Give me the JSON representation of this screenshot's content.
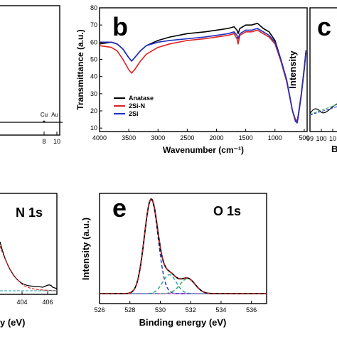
{
  "chart_data": [
    {
      "panel": "a",
      "type": "line",
      "x_ticks": [
        "8",
        "10"
      ],
      "peak_labels": [
        {
          "text": "Cu",
          "x": 8.0
        },
        {
          "text": "Au",
          "x": 9.7
        }
      ],
      "xlim": [
        0,
        10
      ]
    },
    {
      "panel": "b",
      "type": "line",
      "xlabel": "Wavenumber (cm⁻¹)",
      "ylabel": "Transmittance (a.u.)",
      "xlim": [
        4000,
        450
      ],
      "ylim": [
        8,
        80
      ],
      "x_ticks": [
        "4000",
        "3500",
        "3000",
        "2500",
        "2000",
        "1500",
        "1000",
        "500"
      ],
      "y_ticks": [
        "10",
        "20",
        "30",
        "40",
        "50",
        "60",
        "70",
        "80"
      ],
      "series": [
        {
          "name": "Anatase",
          "color": "#000000",
          "x": [
            4000,
            3800,
            3700,
            3600,
            3500,
            3450,
            3400,
            3300,
            3200,
            3000,
            2800,
            2500,
            2200,
            2000,
            1800,
            1700,
            1650,
            1630,
            1600,
            1500,
            1400,
            1300,
            1200,
            1100,
            1000,
            900,
            800,
            700,
            650,
            620,
            600,
            550,
            500,
            470,
            450
          ],
          "y": [
            59,
            60,
            59,
            56,
            51,
            49,
            51,
            55,
            58,
            61,
            63,
            65,
            66,
            67,
            68,
            69,
            67,
            65,
            68,
            70,
            70,
            71,
            68,
            66,
            61,
            50,
            38,
            20,
            15,
            14,
            18,
            30,
            45,
            55,
            55
          ]
        },
        {
          "name": "2Si-N",
          "color": "#e02020",
          "x": [
            4000,
            3800,
            3700,
            3600,
            3500,
            3450,
            3400,
            3300,
            3200,
            3000,
            2800,
            2500,
            2200,
            2000,
            1800,
            1700,
            1650,
            1630,
            1600,
            1500,
            1400,
            1300,
            1200,
            1100,
            1000,
            900,
            800,
            700,
            650,
            620,
            600,
            550,
            500,
            470,
            450
          ],
          "y": [
            58,
            57,
            55,
            50,
            44,
            42,
            44,
            49,
            53,
            57,
            59,
            61,
            62,
            63,
            64,
            65,
            62,
            59,
            64,
            66,
            66,
            67,
            65,
            63,
            59,
            49,
            37,
            20,
            15,
            14,
            18,
            30,
            44,
            54,
            55
          ]
        },
        {
          "name": "2Si",
          "color": "#2030c0",
          "x": [
            4000,
            3800,
            3700,
            3600,
            3500,
            3450,
            3400,
            3300,
            3200,
            3000,
            2800,
            2500,
            2200,
            2000,
            1800,
            1700,
            1650,
            1630,
            1600,
            1500,
            1400,
            1300,
            1200,
            1100,
            1000,
            900,
            800,
            700,
            650,
            620,
            600,
            550,
            500,
            470,
            450
          ],
          "y": [
            60,
            60,
            59,
            56,
            51,
            49,
            51,
            55,
            58,
            60,
            61,
            62,
            63,
            64,
            65,
            66,
            64,
            62,
            65,
            67,
            67,
            68,
            66,
            64,
            60,
            50,
            38,
            20,
            14,
            13,
            17,
            29,
            44,
            55,
            55
          ]
        }
      ],
      "legend_position": "bottom-left"
    },
    {
      "panel": "c",
      "type": "line",
      "ylabel": "Intensity",
      "x_ticks": [
        "99",
        "100",
        "10"
      ],
      "xlabel_fragment": "B"
    },
    {
      "panel": "d",
      "type": "line",
      "title": "N 1s",
      "x_ticks": [
        "404",
        "406"
      ],
      "xlabel_fragment": "y (eV)"
    },
    {
      "panel": "e",
      "type": "line",
      "title": "O 1s",
      "xlabel": "Binding energy (eV)",
      "ylabel": "Intensity (a.u.)",
      "xlim": [
        526,
        537
      ],
      "ylim": [
        0,
        1.08
      ],
      "x_ticks": [
        "526",
        "528",
        "530",
        "532",
        "534",
        "536"
      ],
      "fit_components": [
        {
          "center": 529.4,
          "height": 1.0,
          "width": 0.45,
          "color": "#2030c0"
        },
        {
          "center": 530.6,
          "height": 0.2,
          "width": 0.45,
          "color": "#20a0a0"
        },
        {
          "center": 531.8,
          "height": 0.16,
          "width": 0.5,
          "color": "#20a060"
        }
      ],
      "baseline": 0.015,
      "colors": {
        "data": "#000000",
        "fit": "#e02020",
        "baseline": "#e020e0"
      }
    }
  ],
  "panel_labels": {
    "b": "b",
    "c": "c",
    "d": "N 1s",
    "e": "e",
    "e_title": "O 1s"
  }
}
